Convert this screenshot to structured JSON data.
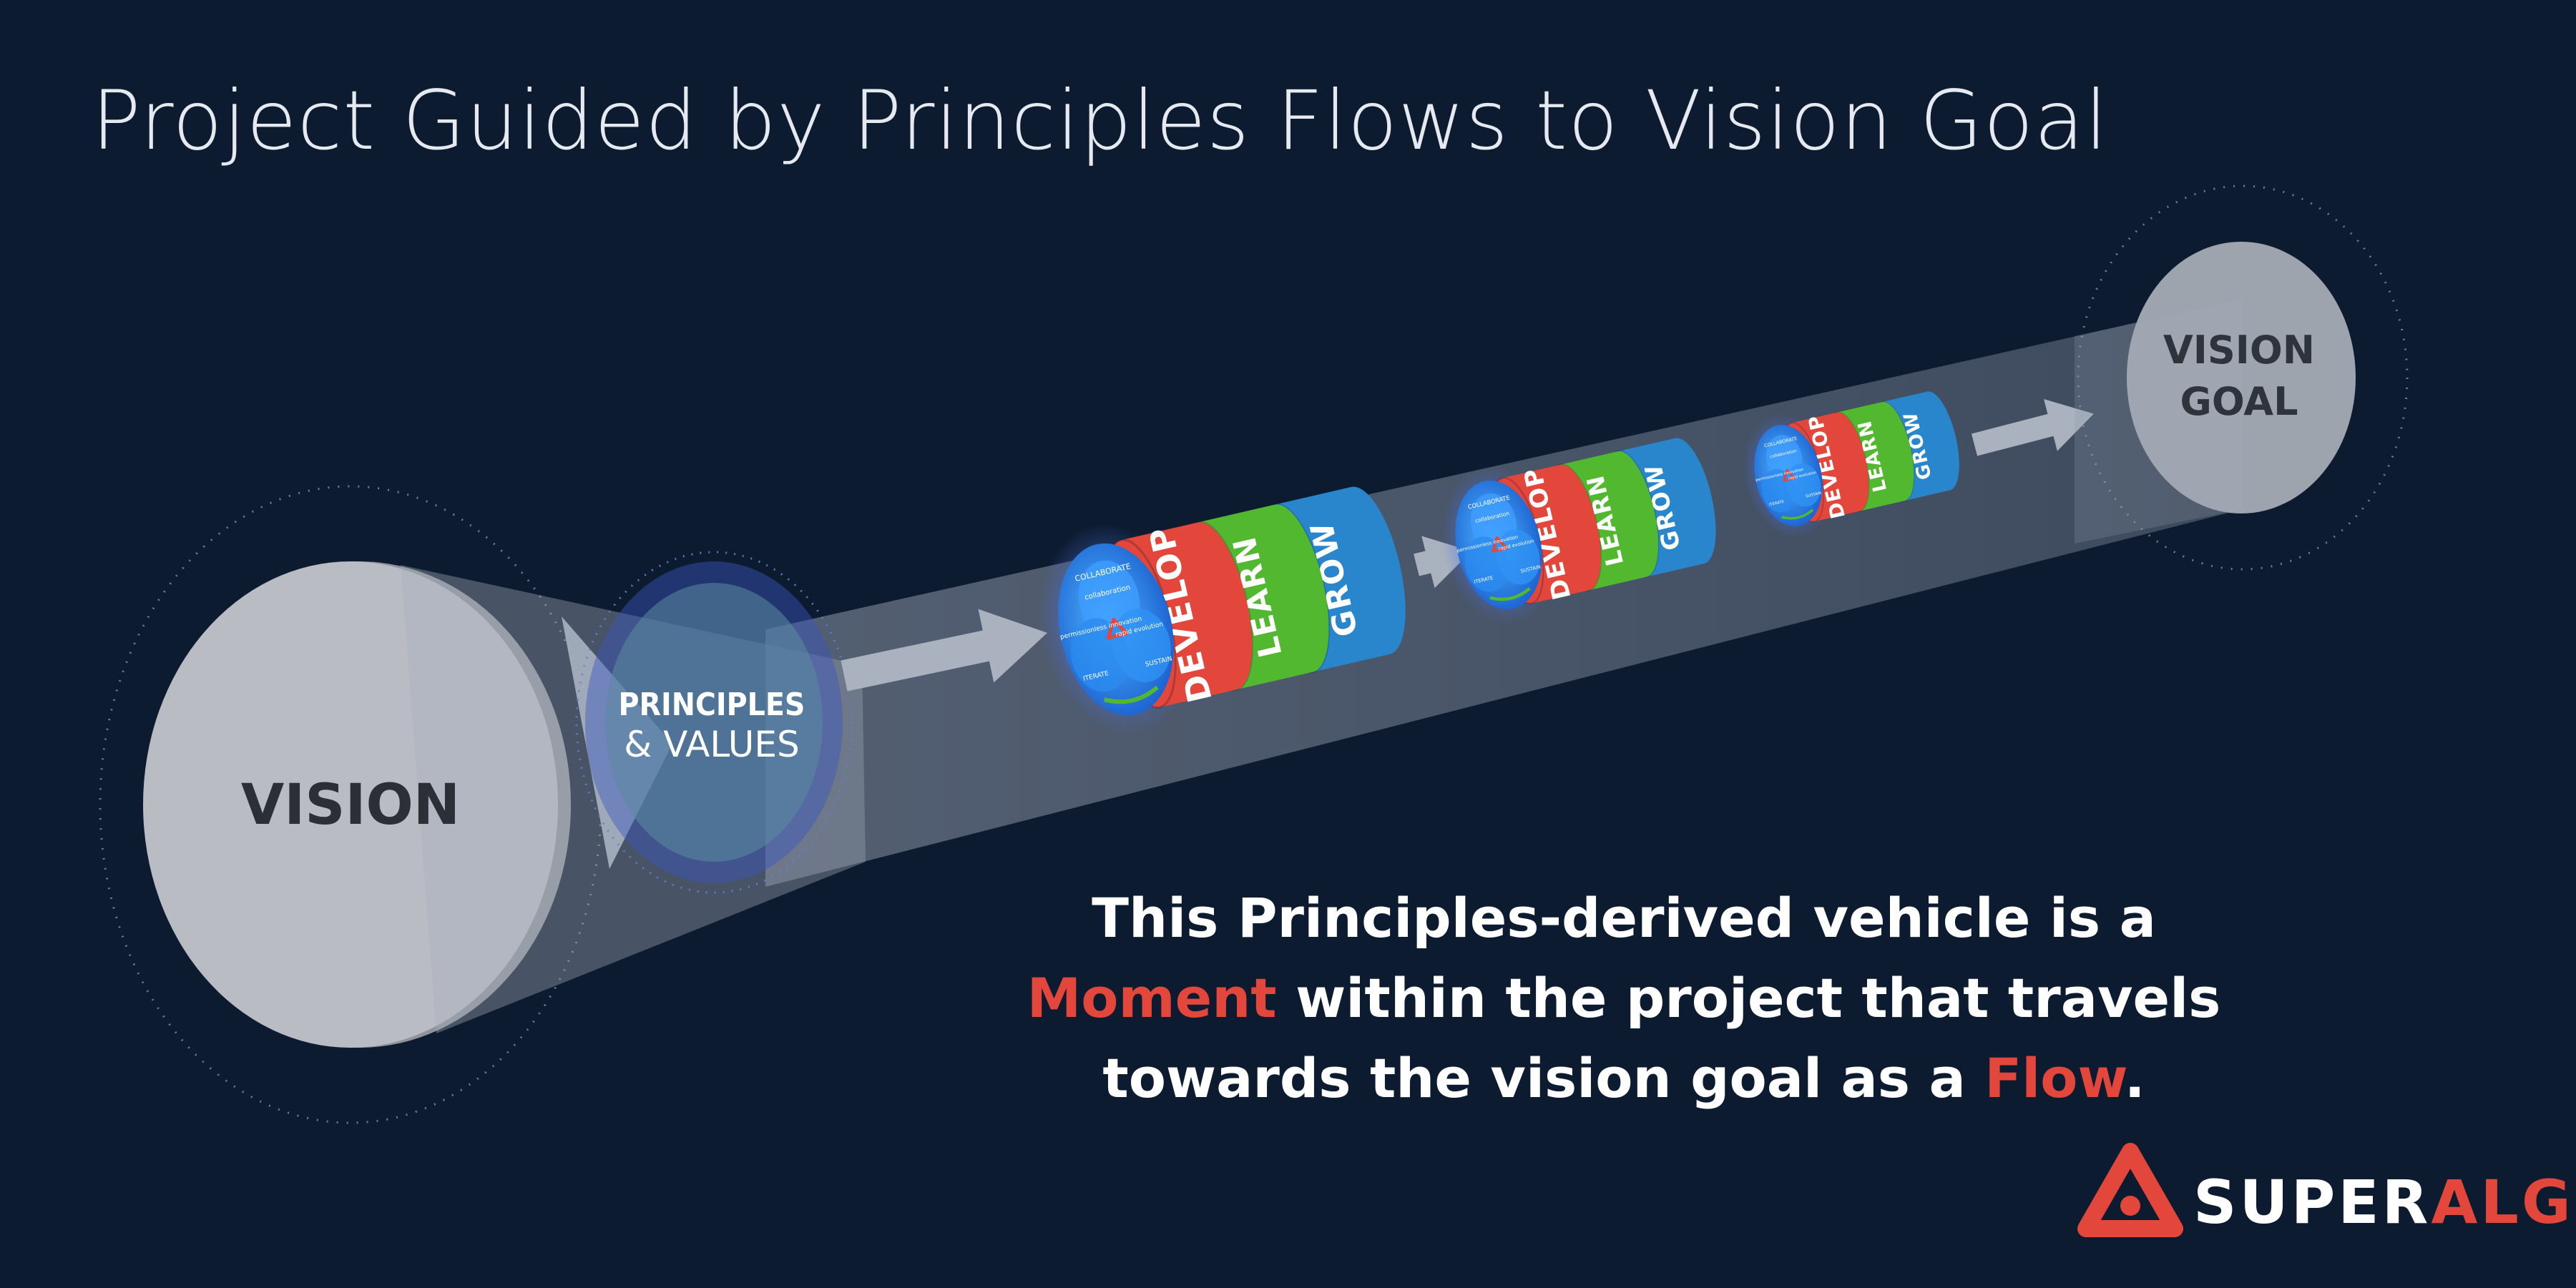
{
  "title": "Project Guided by Principles Flows to Vision Goal",
  "vision": {
    "label": "VISION"
  },
  "principles": {
    "line1": "PRINCIPLES",
    "line2": "& VALUES"
  },
  "vision_goal": {
    "line1": "VISION",
    "line2": "GOAL"
  },
  "vehicle": {
    "bands": [
      "DEVELOP",
      "LEARN",
      "GROW"
    ],
    "face_labels": [
      "COLLABORATE",
      "collaboration",
      "permissionless innovation",
      "rapid evolution",
      "ITERATE",
      "SUSTAIN"
    ],
    "count": 3
  },
  "caption": {
    "p1": "This Principles-derived vehicle is a ",
    "h1": "Moment",
    "p2": " within the project that travels towards the vision goal as a ",
    "h2": "Flow",
    "p3": "."
  },
  "brand": {
    "part1": "SUPER",
    "part2": "ALGOS"
  },
  "colors": {
    "background": "#0d1b30",
    "accent": "#e3463b",
    "develop": "#e3463b",
    "learn": "#52b830",
    "grow": "#2a86cc",
    "disc": "#b9bcc3"
  }
}
